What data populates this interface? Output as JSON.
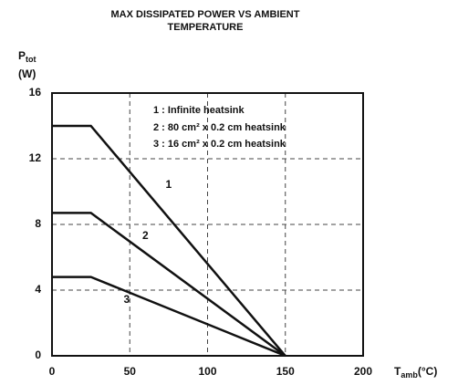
{
  "chart_data": {
    "type": "line",
    "title": [
      "MAX DISSIPATED POWER VS AMBIENT",
      "TEMPERATURE"
    ],
    "y_label": {
      "text": "P",
      "sub": "tot",
      "unit": "(W)"
    },
    "x_label": {
      "text": "T",
      "sub": "amb",
      "unit": "(°C)"
    },
    "x": [
      0,
      25,
      150
    ],
    "series": [
      {
        "name": "1 : Infinite heatsink",
        "label": "1",
        "color": "#111111",
        "values": [
          14,
          14,
          0
        ]
      },
      {
        "name": "2 : 80 cm² x 0.2 cm heatsink",
        "label": "2",
        "color": "#111111",
        "values": [
          8.7,
          8.7,
          0
        ]
      },
      {
        "name": "3 : 16 cm² x 0.2 cm heatsink",
        "label": "3",
        "color": "#111111",
        "values": [
          4.8,
          4.8,
          0
        ]
      }
    ],
    "xlim": [
      0,
      200
    ],
    "xticks": [
      0,
      50,
      100,
      150,
      200
    ],
    "ylim": [
      0,
      16
    ],
    "yticks": [
      0,
      4,
      8,
      12,
      16
    ],
    "grid": true
  }
}
